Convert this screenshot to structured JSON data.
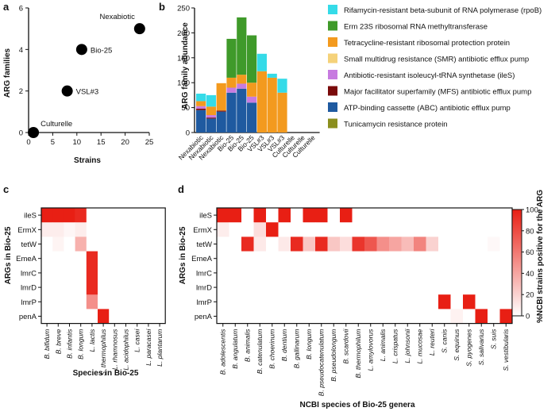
{
  "chart_data": [
    {
      "id": "a",
      "type": "scatter",
      "panel": "a",
      "xlabel": "Strains",
      "ylabel": "ARG families",
      "xlim": [
        0,
        25
      ],
      "ylim": [
        0,
        6
      ],
      "xticks": [
        "0",
        "5",
        "10",
        "15",
        "20",
        "25"
      ],
      "yticks": [
        "0",
        "2",
        "4",
        "6"
      ],
      "points": [
        {
          "label": "Culturelle",
          "x": 1,
          "y": 0
        },
        {
          "label": "VSL#3",
          "x": 8,
          "y": 2
        },
        {
          "label": "Bio-25",
          "x": 11,
          "y": 4
        },
        {
          "label": "Nexabiotic",
          "x": 23,
          "y": 5
        }
      ]
    },
    {
      "id": "b",
      "type": "bar",
      "stacked": true,
      "panel": "b",
      "ylabel": "ARG family abundance",
      "ylim": [
        0,
        250
      ],
      "yticks": [
        "0",
        "50",
        "100",
        "150",
        "200",
        "250"
      ],
      "categories": [
        "Nexabiotic",
        "Nexabiotic",
        "Nexabiotic",
        "Bio-25",
        "Bio-25",
        "Bio-25",
        "VSL#3",
        "VSL#3",
        "VSL#3",
        "Culturelle",
        "Culturelle",
        "Culturelle"
      ],
      "series": [
        {
          "name": "ATP-binding cassette (ABC) antibiotic efflux pump",
          "color": "#1f5aa0",
          "values": [
            45,
            28,
            42,
            80,
            88,
            60,
            0,
            0,
            0,
            0,
            0,
            0
          ]
        },
        {
          "name": "Major facilitator superfamily (MFS) antibiotic efflux pump",
          "color": "#7a0a0a",
          "values": [
            3,
            2,
            2,
            0,
            0,
            0,
            0,
            0,
            0,
            0,
            0,
            0
          ]
        },
        {
          "name": "Antibiotic-resistant isoleucyl-tRNA synthetase (ileS)",
          "color": "#c77be0",
          "values": [
            5,
            5,
            0,
            10,
            10,
            12,
            0,
            0,
            0,
            0,
            0,
            0
          ]
        },
        {
          "name": "Small multidrug resistance (SMR) antibiotic efflux pump",
          "color": "#f5d27a",
          "values": [
            0,
            0,
            0,
            0,
            0,
            0,
            0,
            0,
            0,
            0,
            0,
            0
          ]
        },
        {
          "name": "Tetracycline-resistant ribosomal protection protein",
          "color": "#f39a1e",
          "values": [
            10,
            17,
            55,
            20,
            18,
            28,
            123,
            110,
            80,
            0,
            0,
            0
          ]
        },
        {
          "name": "Erm 23S ribosomal RNA methyltransferase",
          "color": "#3f9a2a",
          "values": [
            0,
            0,
            0,
            78,
            115,
            95,
            0,
            0,
            0,
            0,
            0,
            0
          ]
        },
        {
          "name": "Rifamycin-resistant beta-subunit of RNA polymerase (rpoB)",
          "color": "#35dbe8",
          "values": [
            15,
            23,
            0,
            0,
            0,
            0,
            35,
            8,
            28,
            0,
            0,
            0
          ]
        },
        {
          "name": "Tunicamycin resistance protein",
          "color": "#8b8f1e",
          "values": [
            0,
            0,
            0,
            0,
            0,
            0,
            0,
            0,
            0,
            0,
            0,
            0
          ]
        }
      ],
      "legend_order": [
        "Rifamycin-resistant beta-subunit of RNA polymerase (rpoB)",
        "Erm 23S ribosomal RNA methyltransferase",
        "Tetracycline-resistant ribosomal protection protein",
        "Small multidrug resistance (SMR) antibiotic efflux pump",
        "Antibiotic-resistant isoleucyl-tRNA synthetase (ileS)",
        "Major facilitator superfamily (MFS) antibiotic efflux pump",
        "ATP-binding cassette (ABC) antibiotic efflux pump",
        "Tunicamycin resistance protein"
      ]
    },
    {
      "id": "c",
      "type": "heatmap",
      "panel": "c",
      "xlabel": "Species in Bio-25",
      "ylabel": "ARGs in Bio-25",
      "rows": [
        "ileS",
        "ErmX",
        "tetW",
        "EmeA",
        "lmrC",
        "lmrD",
        "lmrP",
        "penA"
      ],
      "cols": [
        "B. bifidum",
        "B. breve",
        "B. infantis",
        "B. longum",
        "L. lactis",
        "S. thermophilus",
        "L. rhamnosus",
        "L. acidophilus",
        "L. casei",
        "L. paracasei",
        "L. plantarum"
      ],
      "values": [
        [
          100,
          100,
          100,
          95,
          0,
          0,
          0,
          0,
          0,
          0,
          0
        ],
        [
          8,
          8,
          4,
          8,
          0,
          0,
          0,
          0,
          0,
          0,
          0
        ],
        [
          0,
          5,
          0,
          35,
          0,
          0,
          0,
          0,
          0,
          0,
          0
        ],
        [
          0,
          0,
          0,
          0,
          95,
          0,
          0,
          0,
          0,
          0,
          0
        ],
        [
          0,
          0,
          0,
          0,
          95,
          0,
          0,
          0,
          0,
          0,
          0
        ],
        [
          0,
          0,
          0,
          0,
          95,
          0,
          0,
          0,
          0,
          0,
          0
        ],
        [
          0,
          0,
          0,
          0,
          50,
          0,
          0,
          0,
          0,
          0,
          0
        ],
        [
          0,
          0,
          0,
          0,
          0,
          100,
          0,
          0,
          0,
          0,
          0
        ]
      ]
    },
    {
      "id": "d",
      "type": "heatmap",
      "panel": "d",
      "xlabel": "NCBI species of Bio-25 genera",
      "ylabel": "ARGs in Bio-25",
      "colorbar_label": "%NCBI strains positive for the ARG",
      "colorbar_ticks": [
        "0",
        "20",
        "40",
        "60",
        "80",
        "100"
      ],
      "colorbar_range": [
        0,
        100
      ],
      "rows": [
        "ileS",
        "ErmX",
        "tetW",
        "EmeA",
        "lmrC",
        "lmrD",
        "lmrP",
        "penA"
      ],
      "cols": [
        "B. adolescentis",
        "B. angulatum",
        "B. animalis",
        "B. catenulatum",
        "B. choerinum",
        "B. dentium",
        "B. gallinarum",
        "B. longum",
        "B. pseudocatenulatum",
        "B. pseudolongum",
        "B. scardovii",
        "B. thermophilum",
        "L. amylovorus",
        "L. animalis",
        "L. crispatus",
        "L. johnsonii",
        "L. mucosae",
        "L. reuteri",
        "S. canis",
        "S. equinus",
        "S. pyogenes",
        "S. salivarius",
        "S. suis",
        "S. vestibularis"
      ],
      "values": [
        [
          100,
          100,
          0,
          100,
          0,
          100,
          0,
          100,
          100,
          0,
          100,
          0,
          0,
          0,
          0,
          0,
          0,
          0,
          0,
          0,
          0,
          0,
          0,
          0
        ],
        [
          8,
          0,
          0,
          15,
          100,
          0,
          0,
          0,
          0,
          0,
          0,
          0,
          0,
          0,
          0,
          0,
          0,
          0,
          0,
          0,
          0,
          0,
          0,
          0
        ],
        [
          0,
          0,
          95,
          10,
          0,
          10,
          95,
          25,
          95,
          25,
          15,
          90,
          75,
          50,
          40,
          30,
          55,
          20,
          0,
          0,
          0,
          0,
          3,
          0
        ],
        [
          0,
          0,
          0,
          0,
          0,
          0,
          0,
          0,
          0,
          0,
          0,
          0,
          0,
          0,
          0,
          0,
          0,
          0,
          0,
          0,
          0,
          0,
          0,
          0
        ],
        [
          0,
          0,
          0,
          0,
          0,
          0,
          0,
          0,
          0,
          0,
          0,
          0,
          0,
          0,
          0,
          0,
          0,
          0,
          0,
          0,
          0,
          0,
          0,
          0
        ],
        [
          0,
          0,
          0,
          0,
          0,
          0,
          0,
          0,
          0,
          0,
          0,
          0,
          0,
          0,
          0,
          0,
          0,
          0,
          0,
          0,
          0,
          0,
          0,
          0
        ],
        [
          0,
          0,
          0,
          0,
          0,
          0,
          0,
          0,
          0,
          0,
          0,
          0,
          0,
          0,
          0,
          0,
          0,
          0,
          100,
          0,
          100,
          0,
          0,
          0
        ],
        [
          0,
          0,
          0,
          0,
          0,
          0,
          0,
          0,
          0,
          0,
          0,
          0,
          0,
          0,
          0,
          0,
          0,
          0,
          0,
          6,
          0,
          100,
          0,
          100
        ]
      ]
    }
  ]
}
